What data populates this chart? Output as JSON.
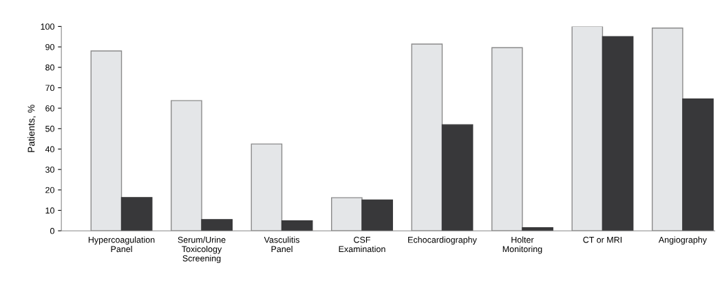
{
  "chart_data": {
    "type": "bar",
    "ylabel": "Patients, %",
    "categories": [
      "Hypercoagulation\nPanel",
      "Serum/Urine\nToxicology\nScreening",
      "Vasculitis\nPanel",
      "CSF\nExamination",
      "Echocardiography",
      "Holter\nMonitoring",
      "CT or MRI",
      "Angiography"
    ],
    "series": [
      {
        "color": "#e4e6e8",
        "values": [
          88,
          63.7,
          42.5,
          16.2,
          91.4,
          89.6,
          100,
          99.2
        ]
      },
      {
        "color": "#38383a",
        "values": [
          16.3,
          5.5,
          4.9,
          15.1,
          51.9,
          1.5,
          95,
          64.5
        ]
      }
    ],
    "ylim": [
      0,
      100
    ],
    "yticks": [
      0,
      10,
      20,
      30,
      40,
      50,
      60,
      70,
      80,
      90,
      100
    ]
  }
}
